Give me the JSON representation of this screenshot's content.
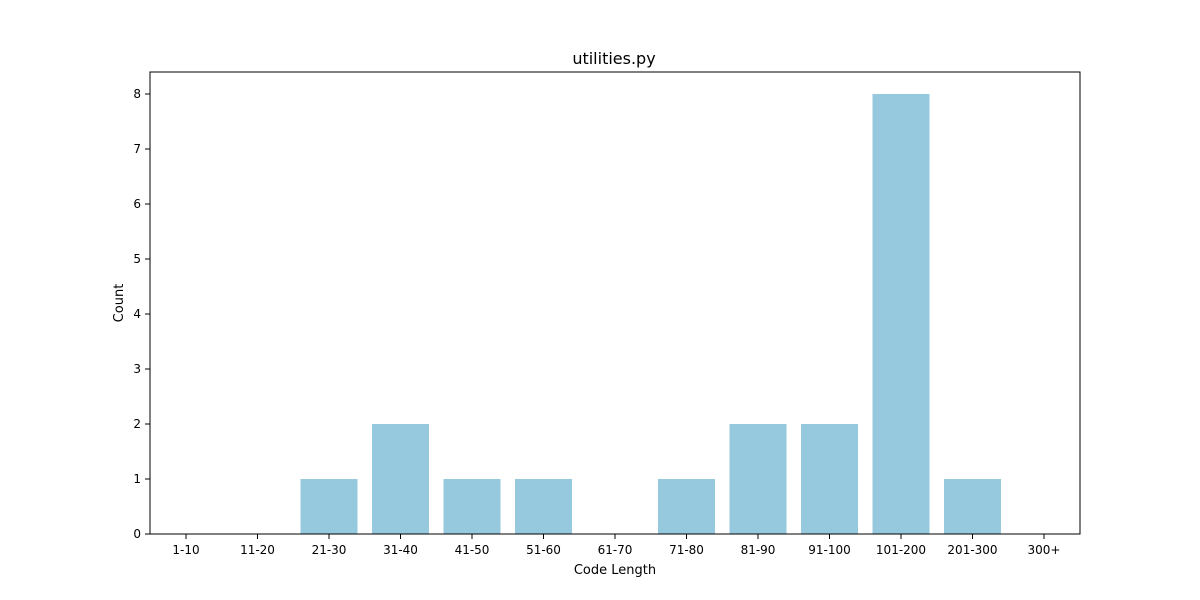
{
  "chart_data": {
    "type": "bar",
    "title": "utilities.py",
    "xlabel": "Code Length",
    "ylabel": "Count",
    "categories": [
      "1-10",
      "11-20",
      "21-30",
      "31-40",
      "41-50",
      "51-60",
      "61-70",
      "71-80",
      "81-90",
      "91-100",
      "101-200",
      "201-300",
      "300+"
    ],
    "values": [
      0,
      0,
      1,
      2,
      1,
      1,
      0,
      1,
      2,
      2,
      8,
      1,
      0
    ],
    "ylim": [
      0,
      8.4
    ],
    "yticks": [
      0,
      1,
      2,
      3,
      4,
      5,
      6,
      7,
      8
    ],
    "bar_color": "#96c9de",
    "grid": false,
    "legend": "none"
  }
}
